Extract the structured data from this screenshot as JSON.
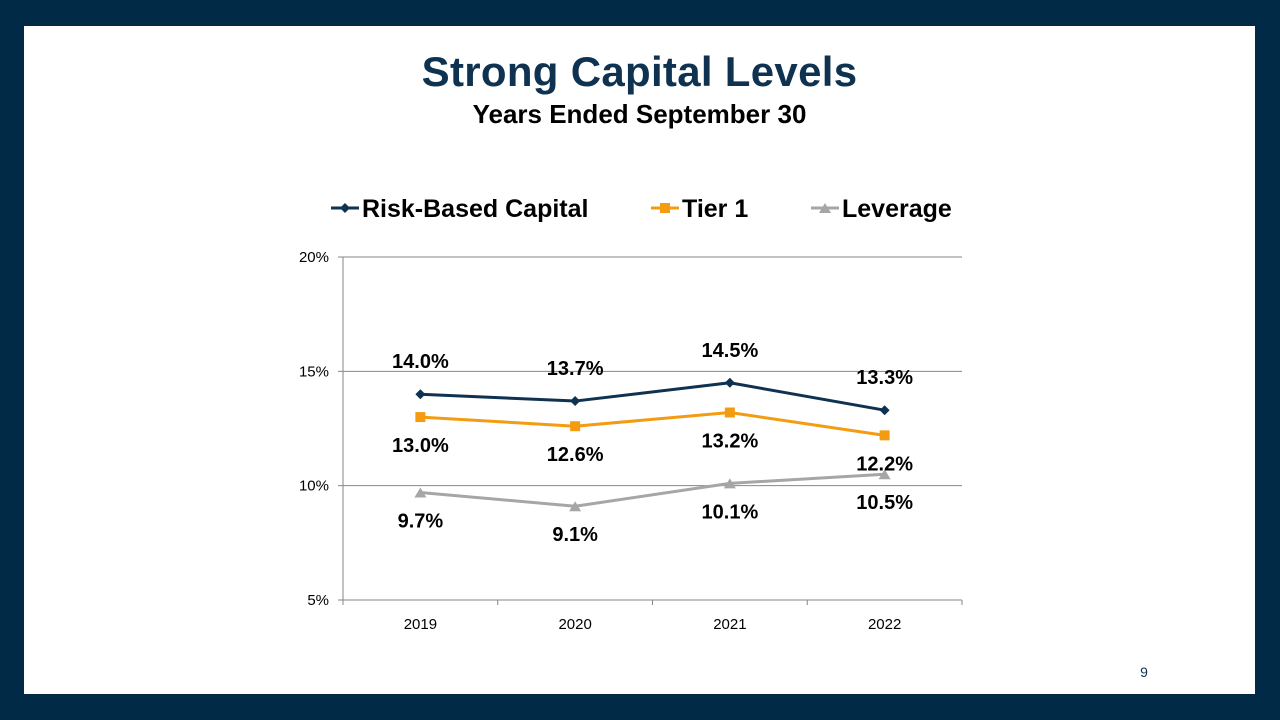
{
  "slide": {
    "title": "Strong Capital Levels",
    "subtitle": "Years Ended September 30",
    "page_number": "9"
  },
  "colors": {
    "background": "#002a45",
    "title": "#0e3250"
  },
  "chart_data": {
    "type": "line",
    "categories": [
      "2019",
      "2020",
      "2021",
      "2022"
    ],
    "ylim": [
      5,
      20
    ],
    "yticks": [
      5,
      10,
      15,
      20
    ],
    "ytick_labels": [
      "5%",
      "10%",
      "15%",
      "20%"
    ],
    "grid": true,
    "legend_position": "top",
    "series": [
      {
        "name": "Risk-Based Capital",
        "values": [
          14.0,
          13.7,
          14.5,
          13.3
        ],
        "labels": [
          "14.0%",
          "13.7%",
          "14.5%",
          "13.3%"
        ],
        "color": "#0e3250",
        "marker": "diamond",
        "label_position": "above"
      },
      {
        "name": "Tier 1",
        "values": [
          13.0,
          12.6,
          13.2,
          12.2
        ],
        "labels": [
          "13.0%",
          "12.6%",
          "13.2%",
          "12.2%"
        ],
        "color": "#f39c12",
        "marker": "square",
        "label_position": "below"
      },
      {
        "name": "Leverage",
        "values": [
          9.7,
          9.1,
          10.1,
          10.5
        ],
        "labels": [
          "9.7%",
          "9.1%",
          "10.1%",
          "10.5%"
        ],
        "color": "#a6a6a6",
        "marker": "triangle",
        "label_position": "below"
      }
    ]
  }
}
